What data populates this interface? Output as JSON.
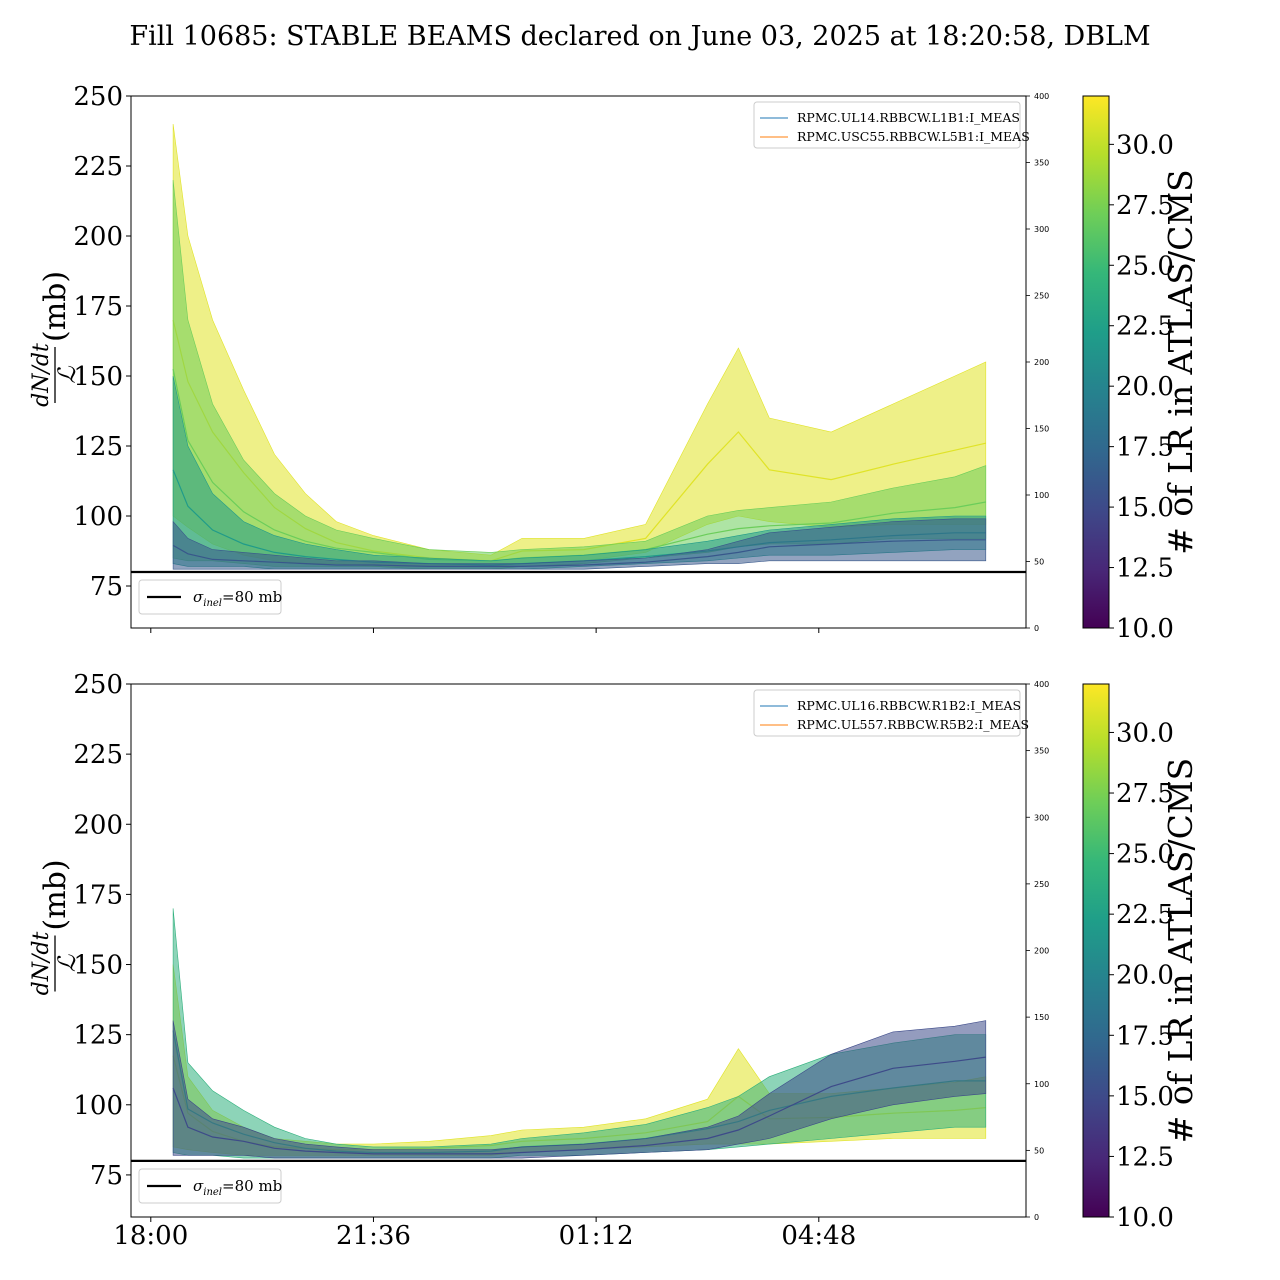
{
  "figure": {
    "title": "Fill 10685: STABLE BEAMS declared on June 03, 2025 at 18:20:58, DBLM"
  },
  "colorbar": {
    "label": "# of LR in ATLAS/CMS",
    "min": 10.0,
    "max": 32.0,
    "ticks": [
      "10.0",
      "12.5",
      "15.0",
      "17.5",
      "20.0",
      "22.5",
      "25.0",
      "27.5",
      "30.0"
    ],
    "tick_values": [
      10.0,
      12.5,
      15.0,
      17.5,
      20.0,
      22.5,
      25.0,
      27.5,
      30.0
    ],
    "colormap": "viridis",
    "colors": [
      "#440154",
      "#482878",
      "#3e4989",
      "#31688e",
      "#26828e",
      "#1f9e89",
      "#35b779",
      "#6ece58",
      "#b5de2b",
      "#fde725"
    ]
  },
  "sigma_line": {
    "value": 80,
    "label_symbol": "σ",
    "label_sub": "inel",
    "label_text": "=80 mb"
  },
  "axes": {
    "y_label_num": "dN/dt",
    "y_label_den": "ℒ",
    "y_label_unit": "(mb)",
    "y_ticks": [
      "75",
      "100",
      "125",
      "150",
      "175",
      "200",
      "225",
      "250"
    ],
    "y_tick_values": [
      75,
      100,
      125,
      150,
      175,
      200,
      225,
      250
    ],
    "ylim": [
      60,
      250
    ],
    "y2_ticks": [
      "0",
      "50",
      "100",
      "150",
      "200",
      "250",
      "300",
      "350",
      "400"
    ],
    "y2_tick_values": [
      0,
      50,
      100,
      150,
      200,
      250,
      300,
      350,
      400
    ],
    "y2lim": [
      0,
      400
    ],
    "x_ticks": [
      "18:00",
      "21:36",
      "01:12",
      "04:48"
    ],
    "x_tick_hours": [
      0,
      3.6,
      7.2,
      10.8
    ],
    "xlim_hours": [
      -0.32,
      14.15
    ]
  },
  "chart_data": [
    {
      "type": "line",
      "panel": "top",
      "xlabel": "",
      "ylabel": "dN/dt / ℒ (mb)",
      "x_unit": "hours after 18:00",
      "ylim": [
        60,
        250
      ],
      "y2lim": [
        0,
        400
      ],
      "legend_position": "top-right",
      "legend": [
        "RPMC.UL14.RBBCW.L1B1:I_MEAS",
        "RPMC.USC55.RBBCW.L5B1:I_MEAS"
      ],
      "legend_colors": [
        "#1f77b4",
        "#ff7f0e"
      ],
      "data_span_hours": [
        0.36,
        13.5
      ],
      "bands": [
        {
          "lr": 31,
          "x": [
            0.36,
            0.6,
            1.0,
            1.5,
            2.0,
            2.5,
            3.0,
            3.6,
            4.5,
            5.5,
            6.0,
            7.0,
            8.0,
            9.0,
            9.5,
            10.0,
            11.0,
            12.0,
            13.0,
            13.5
          ],
          "lo": [
            100,
            96,
            90,
            86,
            84,
            83,
            83,
            82,
            82,
            82,
            83,
            84,
            87,
            97,
            100,
            98,
            96,
            97,
            97,
            97
          ],
          "hi": [
            240,
            200,
            170,
            145,
            122,
            108,
            98,
            93,
            88,
            86,
            92,
            92,
            97,
            140,
            160,
            135,
            130,
            140,
            150,
            155
          ]
        },
        {
          "lr": 27,
          "x": [
            0.36,
            0.6,
            1.0,
            1.5,
            2.0,
            2.5,
            3.0,
            3.6,
            4.5,
            5.5,
            6.0,
            7.0,
            8.0,
            9.0,
            9.5,
            10.0,
            11.0,
            12.0,
            13.0,
            13.5
          ],
          "lo": [
            85,
            84,
            84,
            83,
            82,
            82,
            82,
            82,
            81,
            81,
            82,
            83,
            85,
            87,
            89,
            90,
            90,
            92,
            92,
            92
          ],
          "hi": [
            220,
            170,
            140,
            120,
            108,
            100,
            95,
            92,
            88,
            87,
            88,
            89,
            91,
            100,
            102,
            103,
            105,
            110,
            114,
            118
          ]
        },
        {
          "lr": 22,
          "x": [
            0.36,
            0.6,
            1.0,
            1.5,
            2.0,
            2.5,
            3.0,
            3.6,
            4.5,
            5.5,
            6.0,
            7.0,
            8.0,
            9.0,
            9.5,
            10.0,
            11.0,
            12.0,
            13.0,
            13.5
          ],
          "lo": [
            83,
            82,
            82,
            82,
            81,
            81,
            81,
            81,
            81,
            81,
            81,
            82,
            83,
            84,
            85,
            86,
            86,
            87,
            88,
            88
          ],
          "hi": [
            150,
            125,
            108,
            98,
            93,
            90,
            88,
            86,
            85,
            84,
            85,
            86,
            88,
            91,
            93,
            95,
            97,
            99,
            100,
            100
          ]
        },
        {
          "lr": 16,
          "x": [
            0.36,
            0.6,
            1.0,
            1.5,
            2.0,
            2.5,
            3.0,
            3.6,
            4.5,
            5.5,
            6.0,
            7.0,
            8.0,
            9.0,
            9.5,
            10.0,
            11.0,
            12.0,
            13.0,
            13.5
          ],
          "lo": [
            81,
            81,
            81,
            81,
            81,
            81,
            81,
            81,
            81,
            81,
            81,
            81,
            82,
            83,
            83,
            84,
            84,
            84,
            84,
            84
          ],
          "hi": [
            98,
            92,
            88,
            87,
            86,
            85,
            84,
            84,
            83,
            83,
            83,
            84,
            85,
            88,
            91,
            94,
            96,
            98,
            99,
            99
          ]
        }
      ]
    },
    {
      "type": "line",
      "panel": "bottom",
      "xlabel": "",
      "ylabel": "dN/dt / ℒ (mb)",
      "x_unit": "hours after 18:00",
      "ylim": [
        60,
        250
      ],
      "y2lim": [
        0,
        400
      ],
      "legend_position": "top-right",
      "legend": [
        "RPMC.UL16.RBBCW.R1B2:I_MEAS",
        "RPMC.UL557.RBBCW.R5B2:I_MEAS"
      ],
      "legend_colors": [
        "#1f77b4",
        "#ff7f0e"
      ],
      "data_span_hours": [
        0.36,
        13.5
      ],
      "bands": [
        {
          "lr": 31,
          "x": [
            0.36,
            0.6,
            1.0,
            1.5,
            2.0,
            2.5,
            3.0,
            3.6,
            4.5,
            5.5,
            6.0,
            7.0,
            8.0,
            9.0,
            9.5,
            10.0,
            11.0,
            12.0,
            13.0,
            13.5
          ],
          "lo": [
            85,
            84,
            83,
            82,
            82,
            82,
            82,
            82,
            82,
            82,
            83,
            84,
            85,
            86,
            86,
            86,
            87,
            88,
            88,
            88
          ],
          "hi": [
            150,
            110,
            98,
            92,
            88,
            87,
            86,
            86,
            87,
            89,
            91,
            92,
            95,
            102,
            120,
            104,
            104,
            106,
            108,
            110
          ]
        },
        {
          "lr": 24,
          "x": [
            0.36,
            0.6,
            1.0,
            1.5,
            2.0,
            2.5,
            3.0,
            3.6,
            4.5,
            5.5,
            6.0,
            7.0,
            8.0,
            9.0,
            9.5,
            10.0,
            11.0,
            12.0,
            13.0,
            13.5
          ],
          "lo": [
            83,
            82,
            82,
            81,
            81,
            81,
            81,
            81,
            81,
            81,
            82,
            82,
            83,
            84,
            85,
            86,
            88,
            90,
            92,
            92
          ],
          "hi": [
            170,
            115,
            105,
            98,
            92,
            88,
            86,
            85,
            85,
            86,
            88,
            90,
            93,
            99,
            103,
            110,
            118,
            122,
            125,
            125
          ]
        },
        {
          "lr": 15,
          "x": [
            0.36,
            0.6,
            1.0,
            1.5,
            2.0,
            2.5,
            3.0,
            3.6,
            4.5,
            5.5,
            6.0,
            7.0,
            8.0,
            9.0,
            9.5,
            10.0,
            11.0,
            12.0,
            13.0,
            13.5
          ],
          "lo": [
            82,
            82,
            82,
            82,
            81,
            81,
            81,
            81,
            81,
            81,
            81,
            82,
            83,
            84,
            86,
            88,
            95,
            100,
            103,
            104
          ],
          "hi": [
            130,
            102,
            95,
            92,
            88,
            86,
            85,
            84,
            84,
            84,
            85,
            86,
            88,
            92,
            96,
            104,
            118,
            126,
            128,
            130
          ]
        }
      ]
    }
  ]
}
